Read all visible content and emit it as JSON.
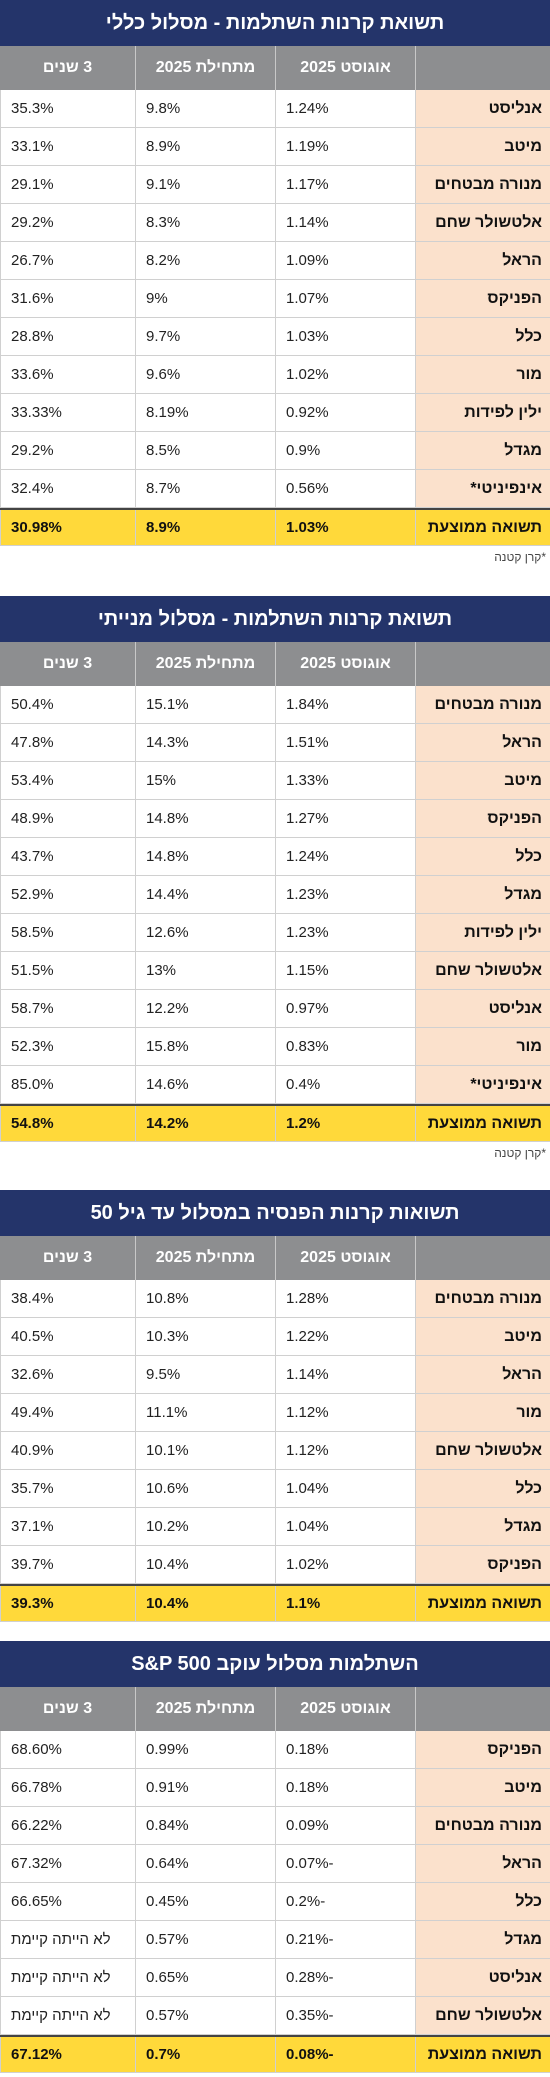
{
  "tables": [
    {
      "title": "תשואת קרנות השתלמות  - מסלול כללי",
      "headers": [
        "אוגוסט 2025",
        "מתחילת 2025",
        "3 שנים"
      ],
      "rows": [
        {
          "name": "אנליסט",
          "aug": "1.24%",
          "ytd": "9.8%",
          "y3": "35.3%"
        },
        {
          "name": "מיטב",
          "aug": "1.19%",
          "ytd": "8.9%",
          "y3": "33.1%"
        },
        {
          "name": "מנורה מבטחים",
          "aug": "1.17%",
          "ytd": "9.1%",
          "y3": "29.1%"
        },
        {
          "name": "אלטשולר שחם",
          "aug": "1.14%",
          "ytd": "8.3%",
          "y3": "29.2%"
        },
        {
          "name": "הראל",
          "aug": "1.09%",
          "ytd": "8.2%",
          "y3": "26.7%"
        },
        {
          "name": "הפניקס",
          "aug": "1.07%",
          "ytd": "9%",
          "y3": "31.6%"
        },
        {
          "name": "כלל",
          "aug": "1.03%",
          "ytd": "9.7%",
          "y3": "28.8%"
        },
        {
          "name": "מור",
          "aug": "1.02%",
          "ytd": "9.6%",
          "y3": "33.6%"
        },
        {
          "name": "ילין לפידות",
          "aug": "0.92%",
          "ytd": "8.19%",
          "y3": "33.33%"
        },
        {
          "name": "מגדל",
          "aug": "0.9%",
          "ytd": "8.5%",
          "y3": "29.2%"
        },
        {
          "name": "אינפיניטי*",
          "aug": "0.56%",
          "ytd": "8.7%",
          "y3": "32.4%"
        }
      ],
      "avg": {
        "name": "תשואה ממוצעת",
        "aug": "1.03%",
        "ytd": "8.9%",
        "y3": "30.98%"
      },
      "note": "*קרן קטנה"
    },
    {
      "title": "תשואת קרנות השתלמות  - מסלול מנייתי",
      "headers": [
        "אוגוסט 2025",
        "מתחילת 2025",
        "3 שנים"
      ],
      "rows": [
        {
          "name": "מנורה מבטחים",
          "aug": "1.84%",
          "ytd": "15.1%",
          "y3": "50.4%"
        },
        {
          "name": "הראל",
          "aug": "1.51%",
          "ytd": "14.3%",
          "y3": "47.8%"
        },
        {
          "name": "מיטב",
          "aug": "1.33%",
          "ytd": "15%",
          "y3": "53.4%"
        },
        {
          "name": "הפניקס",
          "aug": "1.27%",
          "ytd": "14.8%",
          "y3": "48.9%"
        },
        {
          "name": "כלל",
          "aug": "1.24%",
          "ytd": "14.8%",
          "y3": "43.7%"
        },
        {
          "name": "מגדל",
          "aug": "1.23%",
          "ytd": "14.4%",
          "y3": "52.9%"
        },
        {
          "name": "ילין לפידות",
          "aug": "1.23%",
          "ytd": "12.6%",
          "y3": "58.5%"
        },
        {
          "name": "אלטשולר שחם",
          "aug": "1.15%",
          "ytd": "13%",
          "y3": "51.5%"
        },
        {
          "name": "אנליסט",
          "aug": "0.97%",
          "ytd": "12.2%",
          "y3": "58.7%"
        },
        {
          "name": "מור",
          "aug": "0.83%",
          "ytd": "15.8%",
          "y3": "52.3%"
        },
        {
          "name": "אינפיניטי*",
          "aug": "0.4%",
          "ytd": "14.6%",
          "y3": "85.0%"
        }
      ],
      "avg": {
        "name": "תשואה ממוצעת",
        "aug": "1.2%",
        "ytd": "14.2%",
        "y3": "54.8%"
      },
      "note": "*קרן קטנה"
    },
    {
      "title": "תשואות קרנות הפנסיה במסלול עד גיל 50",
      "headers": [
        "אוגוסט 2025",
        "מתחילת 2025",
        "3 שנים"
      ],
      "rows": [
        {
          "name": "מנורה מבטחים",
          "aug": "1.28%",
          "ytd": "10.8%",
          "y3": "38.4%"
        },
        {
          "name": "מיטב",
          "aug": "1.22%",
          "ytd": "10.3%",
          "y3": "40.5%"
        },
        {
          "name": "הראל",
          "aug": "1.14%",
          "ytd": "9.5%",
          "y3": "32.6%"
        },
        {
          "name": "מור",
          "aug": "1.12%",
          "ytd": "11.1%",
          "y3": "49.4%"
        },
        {
          "name": "אלטשולר שחם",
          "aug": "1.12%",
          "ytd": "10.1%",
          "y3": "40.9%"
        },
        {
          "name": "כלל",
          "aug": "1.04%",
          "ytd": "10.6%",
          "y3": "35.7%"
        },
        {
          "name": "מגדל",
          "aug": "1.04%",
          "ytd": "10.2%",
          "y3": "37.1%"
        },
        {
          "name": "הפניקס",
          "aug": "1.02%",
          "ytd": "10.4%",
          "y3": "39.7%"
        }
      ],
      "avg": {
        "name": "תשואה ממוצעת",
        "aug": "1.1%",
        "ytd": "10.4%",
        "y3": "39.3%"
      },
      "note": ""
    },
    {
      "title": "השתלמות מסלול עוקב S&P 500",
      "headers": [
        "אוגוסט 2025",
        "מתחילת 2025",
        "3 שנים"
      ],
      "rows": [
        {
          "name": "הפניקס",
          "aug": "0.18%",
          "ytd": "0.99%",
          "y3": "68.60%"
        },
        {
          "name": "מיטב",
          "aug": "0.18%",
          "ytd": "0.91%",
          "y3": "66.78%"
        },
        {
          "name": "מנורה מבטחים",
          "aug": "0.09%",
          "ytd": "0.84%",
          "y3": "66.22%"
        },
        {
          "name": "הראל",
          "aug": "-0.07%",
          "ytd": "0.64%",
          "y3": "67.32%"
        },
        {
          "name": "כלל",
          "aug": "-0.2%",
          "ytd": "0.45%",
          "y3": "66.65%"
        },
        {
          "name": "מגדל",
          "aug": "-0.21%",
          "ytd": "0.57%",
          "y3": "לא הייתה קיימת"
        },
        {
          "name": "אנליסט",
          "aug": "-0.28%",
          "ytd": "0.65%",
          "y3": "לא הייתה קיימת"
        },
        {
          "name": "אלטשולר שחם",
          "aug": "-0.35%",
          "ytd": "0.57%",
          "y3": "לא הייתה קיימת"
        }
      ],
      "avg": {
        "name": "תשואה ממוצעת",
        "aug": "-0.08%",
        "ytd": "0.7%",
        "y3": "67.12%"
      },
      "note": ""
    }
  ]
}
